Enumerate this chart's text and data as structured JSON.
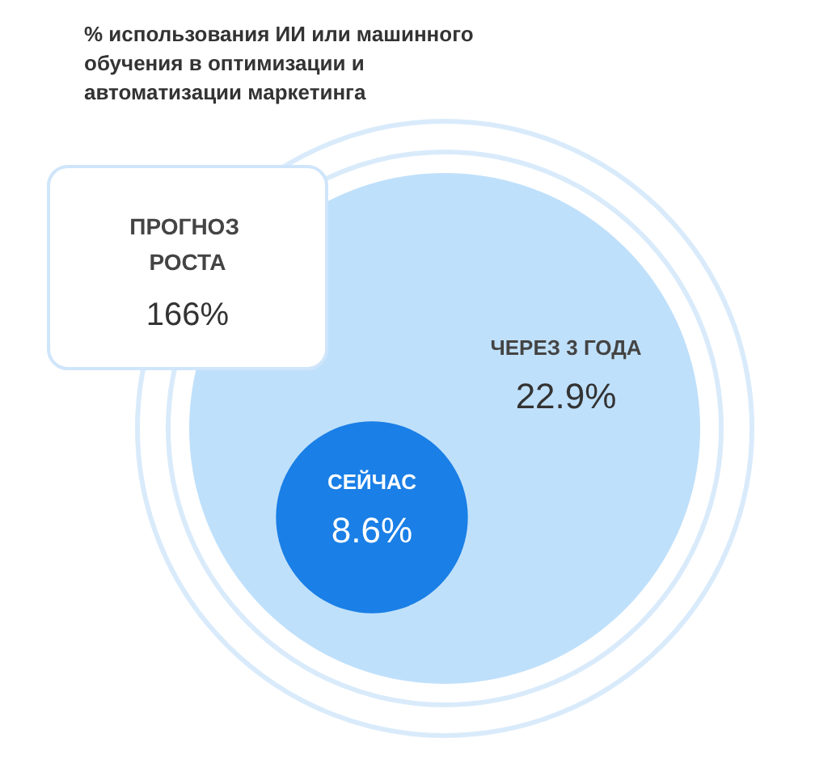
{
  "chart_data": {
    "type": "other",
    "title": "% использования ИИ или машинного обучения в оптимизации и автоматизации маркетинга",
    "categories": [
      "СЕЙЧАС",
      "ЧЕРЕЗ 3 ГОДА"
    ],
    "values": [
      8.6,
      22.9
    ],
    "colors": [
      "#1a7fe6",
      "#bfe0fb"
    ],
    "value_labels": [
      "8.6%",
      "22.9%"
    ],
    "annotations": [
      "ПРОГНОЗ РОСТА",
      "166%"
    ]
  }
}
